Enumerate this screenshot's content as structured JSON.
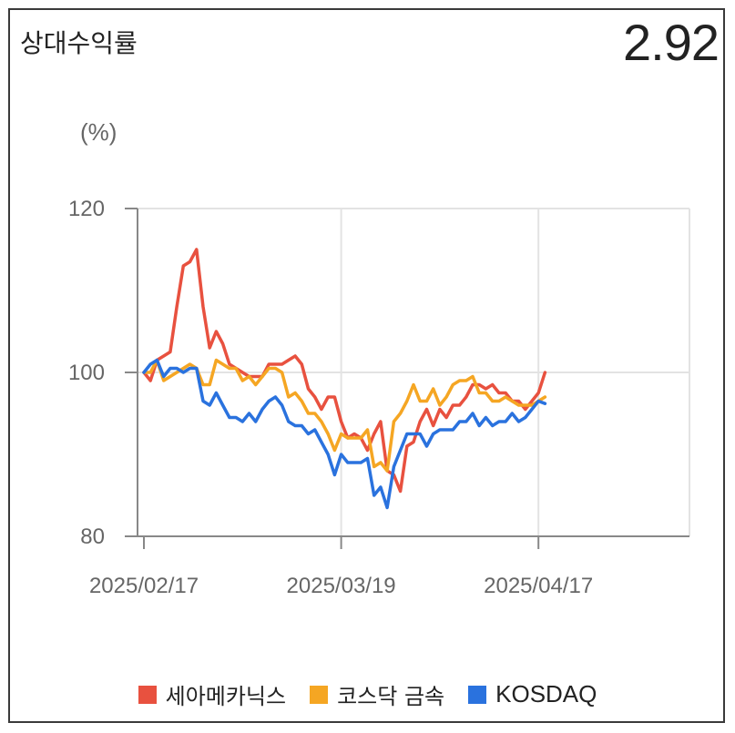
{
  "header": {
    "title": "상대수익률",
    "value": "2.92"
  },
  "chart_data": {
    "type": "line",
    "unit_label": "(%)",
    "ylim": [
      80,
      120
    ],
    "yticks": [
      "120",
      "100",
      "80"
    ],
    "ytick_values": [
      120,
      100,
      80
    ],
    "xticks": [
      "2025/02/17",
      "2025/03/19",
      "2025/04/17"
    ],
    "xtick_index": [
      0,
      30,
      60
    ],
    "grid": true,
    "legend_position": "bottom",
    "series": [
      {
        "name": "세아메카닉스",
        "color": "#e8513f",
        "values": [
          100,
          99,
          101.5,
          102,
          102.5,
          108,
          113,
          113.5,
          115,
          108,
          103,
          105,
          103.5,
          101,
          100.5,
          100,
          99.5,
          99.5,
          99.5,
          101,
          101,
          101,
          101.5,
          102,
          101,
          98,
          97,
          95.5,
          97,
          97,
          94,
          92,
          92.5,
          92,
          90.5,
          92.5,
          94,
          88,
          87.5,
          85.5,
          91,
          91.5,
          94,
          95.5,
          93.5,
          95.5,
          94.5,
          96,
          96,
          97,
          98.5,
          98.5,
          98,
          98.5,
          97.5,
          97.5,
          96.5,
          96.5,
          95.5,
          96.5,
          97.5,
          100
        ]
      },
      {
        "name": "코스닥 금속",
        "color": "#f5a623",
        "values": [
          100,
          100,
          101.5,
          99,
          99.5,
          100,
          100.5,
          101,
          100.5,
          98.5,
          98.5,
          101.5,
          101,
          100.5,
          100.5,
          99,
          99.5,
          98.5,
          99.5,
          100.5,
          100.5,
          100,
          97,
          97.5,
          96.5,
          95,
          95,
          94,
          92.5,
          90.5,
          92.5,
          92,
          92,
          92,
          93,
          88.5,
          89,
          88,
          94,
          95,
          96.5,
          98.5,
          96.5,
          96.5,
          98,
          96,
          97,
          98.5,
          99,
          99,
          99.5,
          97.5,
          97.5,
          96.5,
          96.5,
          97,
          96.5,
          96,
          96,
          96,
          96.5,
          97
        ]
      },
      {
        "name": "KOSDAQ",
        "color": "#2a72de",
        "values": [
          100,
          101,
          101.5,
          99.5,
          100.5,
          100.5,
          100,
          100.5,
          100.5,
          96.5,
          96,
          97.5,
          96,
          94.5,
          94.5,
          94,
          95,
          94,
          95.5,
          96.5,
          97,
          96,
          94,
          93.5,
          93.5,
          92.5,
          93,
          91.5,
          90,
          87.5,
          90,
          89,
          89,
          89,
          89.5,
          85,
          86,
          83.5,
          88.5,
          90.5,
          92.5,
          92.5,
          92.5,
          91,
          92.5,
          93,
          93,
          93,
          94,
          94,
          95,
          93.5,
          94.5,
          93.5,
          94,
          94,
          95,
          94,
          94.5,
          95.5,
          96.5,
          96.2
        ]
      }
    ]
  }
}
